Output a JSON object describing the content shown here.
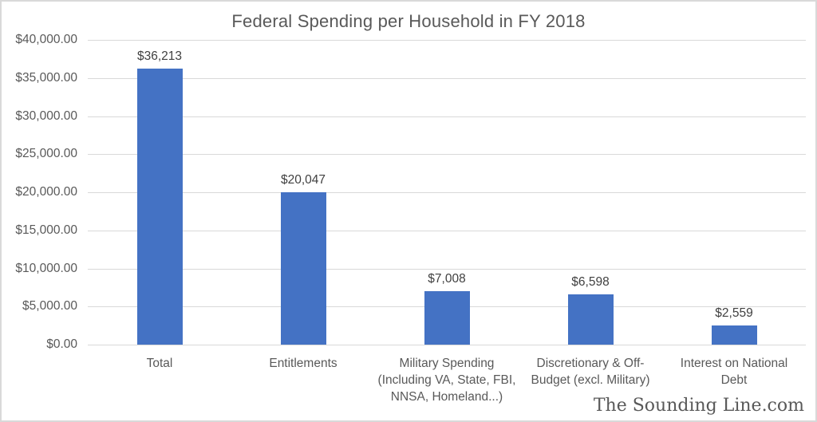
{
  "chart_data": {
    "type": "bar",
    "title": "Federal Spending per Household in FY 2018",
    "categories": [
      "Total",
      "Entitlements",
      "Military Spending (Including VA, State, FBI, NNSA, Homeland...)",
      "Discretionary & Off-Budget (excl. Military)",
      "Interest on National Debt"
    ],
    "category_lines": [
      [
        "Total"
      ],
      [
        "Entitlements"
      ],
      [
        "Military Spending",
        "(Including VA, State, FBI,",
        "NNSA, Homeland...)"
      ],
      [
        "Discretionary & Off-",
        "Budget (excl. Military)"
      ],
      [
        "Interest on National",
        "Debt"
      ]
    ],
    "values": [
      36213,
      20047,
      7008,
      6598,
      2559
    ],
    "data_labels": [
      "$36,213",
      "$20,047",
      "$7,008",
      "$6,598",
      "$2,559"
    ],
    "xlabel": "",
    "ylabel": "",
    "ylim": [
      0,
      40000
    ],
    "y_tick_values": [
      40000,
      35000,
      30000,
      25000,
      20000,
      15000,
      10000,
      5000,
      0
    ],
    "y_tick_labels": [
      "$40,000.00",
      "$35,000.00",
      "$30,000.00",
      "$25,000.00",
      "$20,000.00",
      "$15,000.00",
      "$10,000.00",
      "$5,000.00",
      "$0.00"
    ],
    "grid": true,
    "legend": "none"
  },
  "watermark": "The Sounding Line.com",
  "colors": {
    "bar": "#4472C4",
    "title_text": "#595959",
    "axis_text": "#595959",
    "data_label_text": "#404040",
    "gridline": "#D9D9D9",
    "axis_line": "#D9D9D9",
    "border": "#D9D9D9",
    "background": "#FFFFFF"
  }
}
